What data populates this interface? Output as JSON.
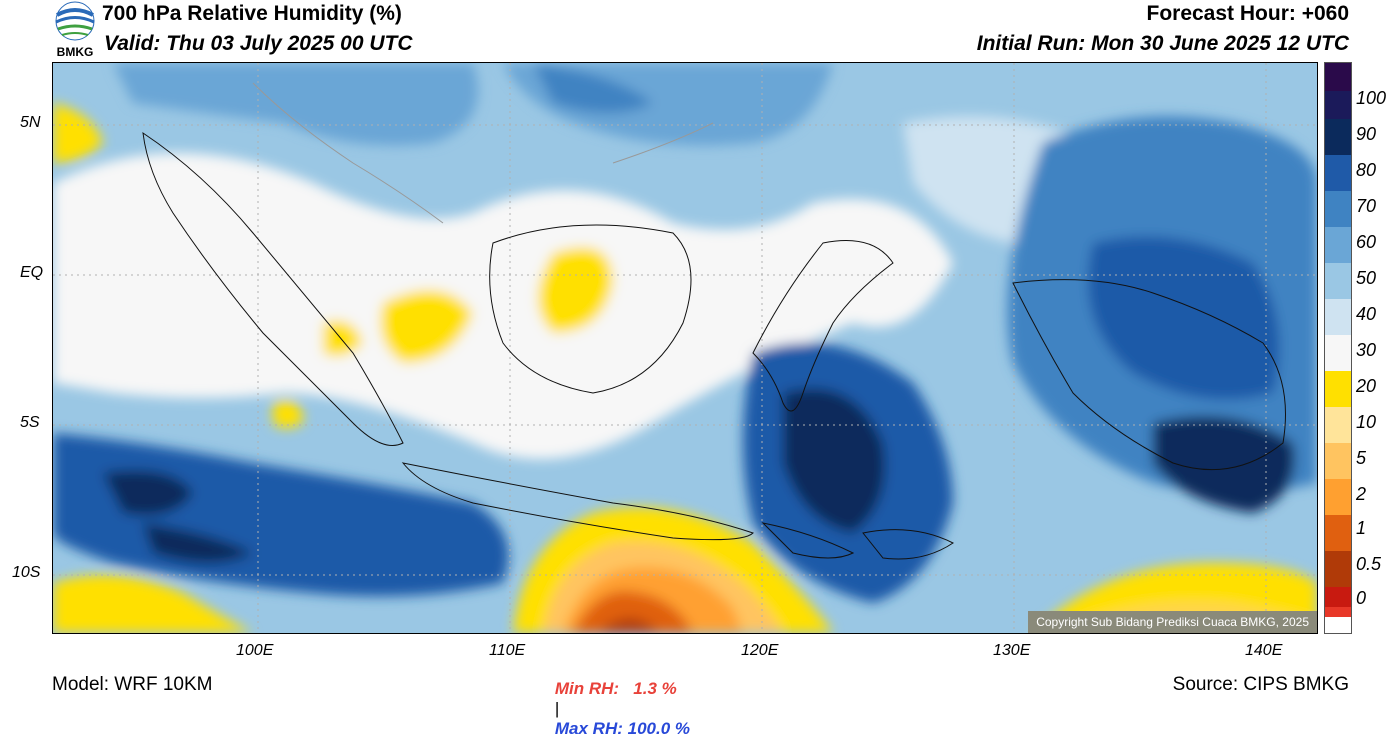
{
  "header": {
    "title": "700 hPa Relative Humidity (%)",
    "valid": "Valid: Thu 03 July 2025 00 UTC",
    "forecast_hour": "Forecast Hour: +060",
    "initial_run": "Initial Run: Mon 30 June 2025 12 UTC",
    "logo_text": "BMKG"
  },
  "map": {
    "lat_labels": [
      "5N",
      "EQ",
      "5S",
      "10S"
    ],
    "lon_labels": [
      "100E",
      "110E",
      "120E",
      "130E",
      "140E"
    ],
    "copyright": "Copyright Sub Bidang Prediksi Cuaca BMKG, 2025"
  },
  "colorbar": {
    "labels": [
      "100",
      "90",
      "80",
      "70",
      "60",
      "50",
      "40",
      "30",
      "20",
      "10",
      "5",
      "2",
      "1",
      "0.5",
      "0"
    ],
    "colors": [
      "#2a0a4a",
      "#0b2a5c",
      "#1f5aa8",
      "#3f83c2",
      "#6aa6d6",
      "#9ac7e4",
      "#cfe3f1",
      "#f7f7f7",
      "#ffe000",
      "#ffd54a",
      "#ffe49a",
      "#ffc460",
      "#ffa030",
      "#e06010",
      "#b03a08",
      "#7a2a08",
      "#c81a10",
      "#e83828"
    ]
  },
  "footer": {
    "model": "Model: WRF 10KM",
    "min_rh": "Min RH:   1.3 %",
    "separator": "|",
    "max_rh": "Max RH: 100.0 %",
    "source": "Source: CIPS BMKG"
  }
}
